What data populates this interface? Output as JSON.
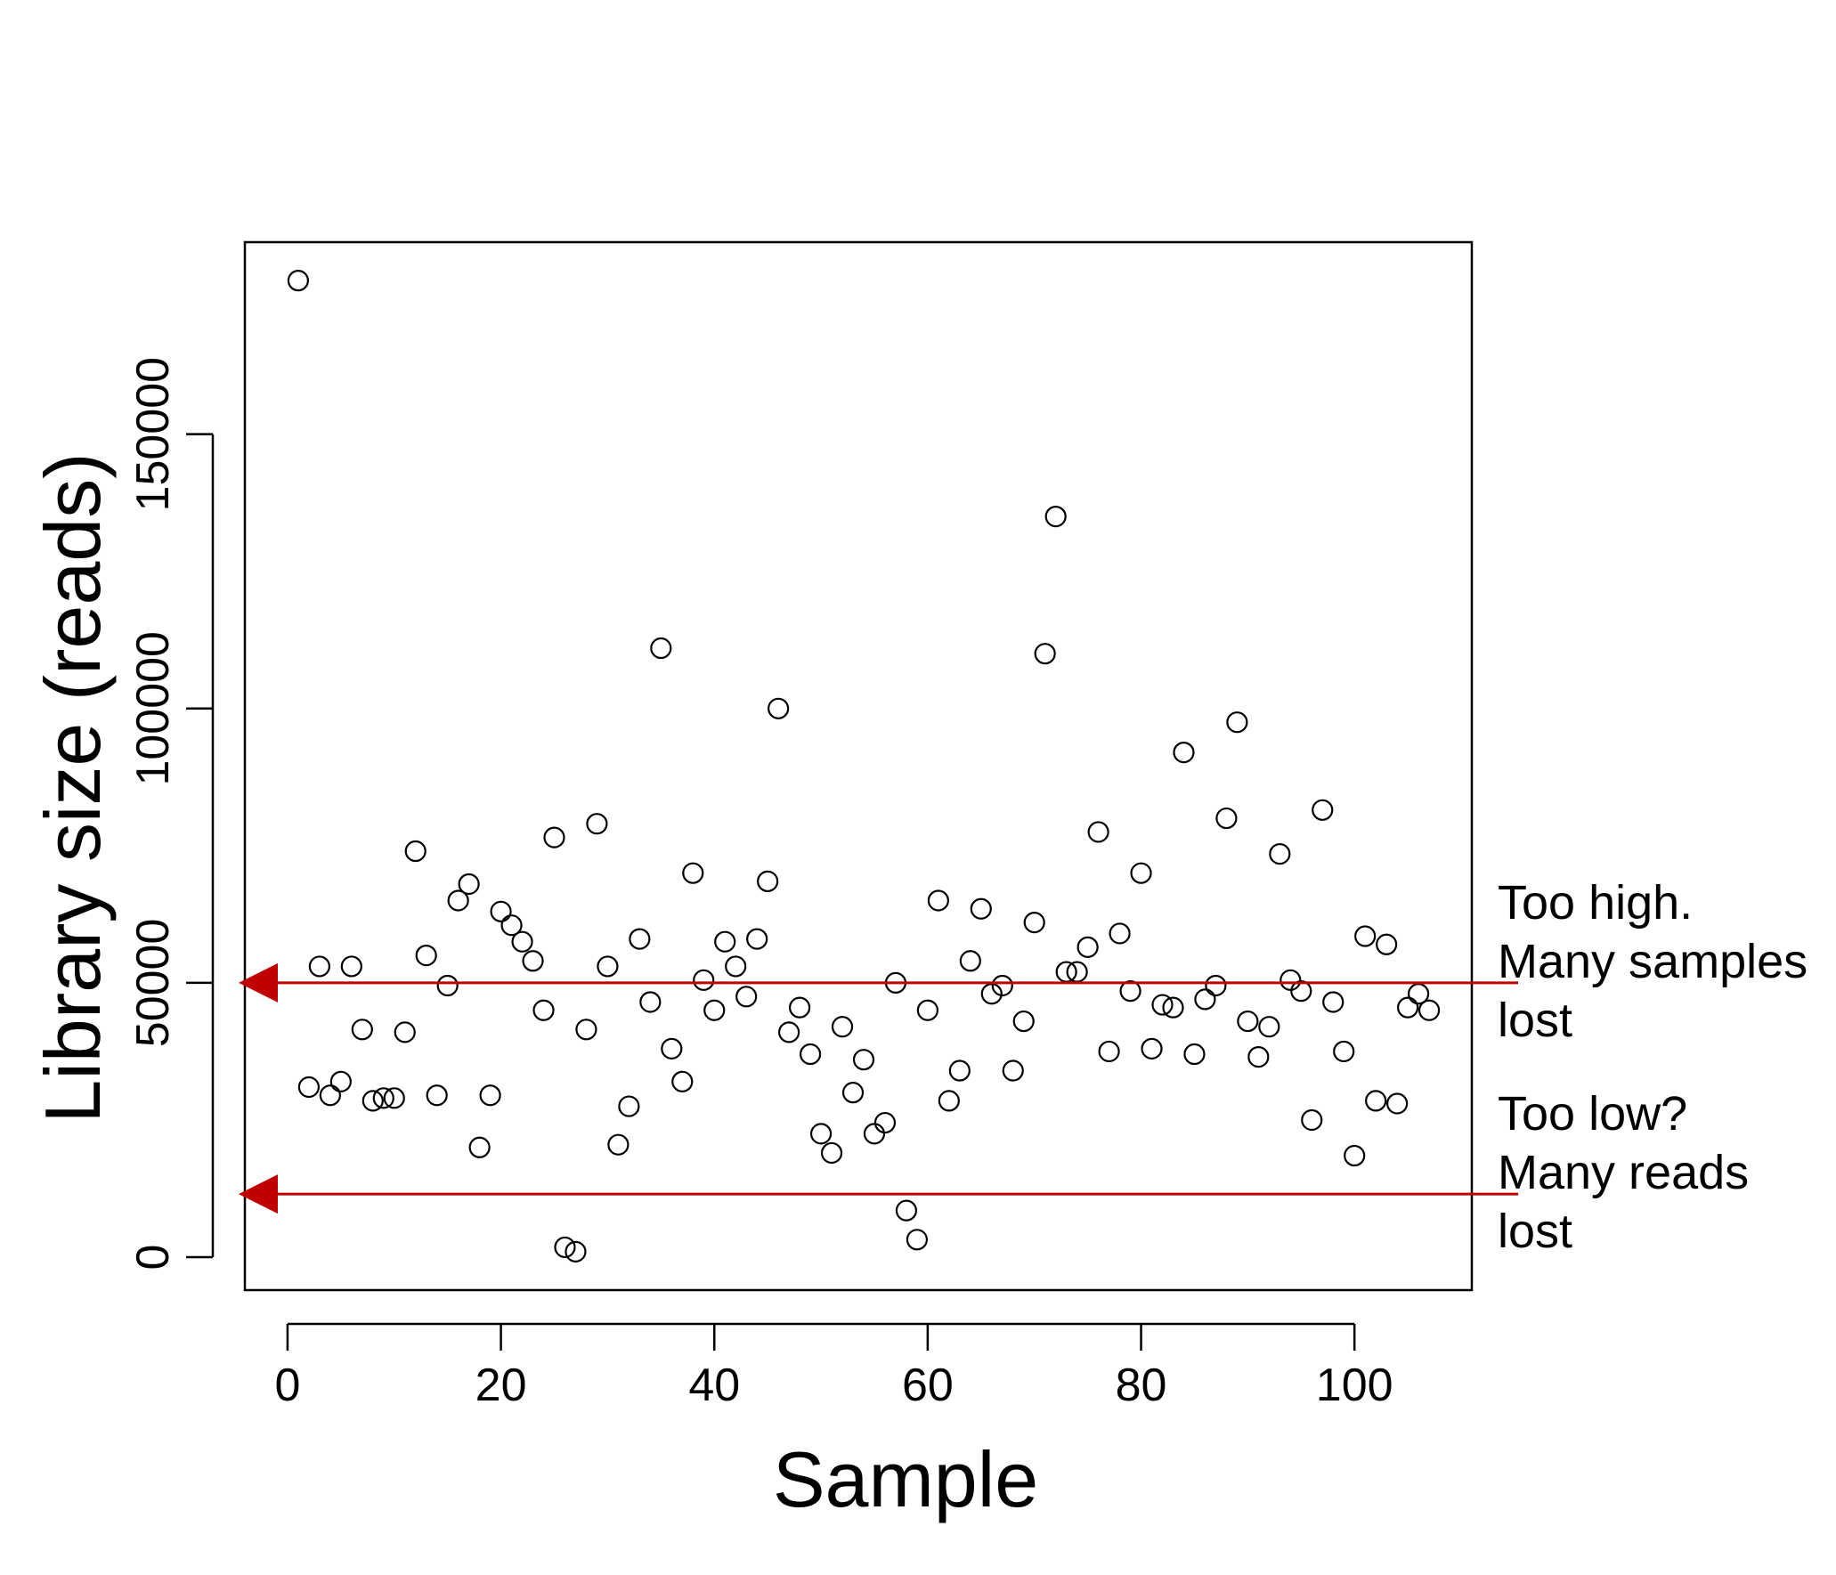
{
  "chart_data": {
    "type": "scatter",
    "xlabel": "Sample",
    "ylabel": "Library size (reads)",
    "xlim": [
      -4,
      111
    ],
    "ylim": [
      -6000,
      185000
    ],
    "x_ticks": [
      0,
      20,
      40,
      60,
      80,
      100
    ],
    "y_ticks": [
      0,
      50000,
      100000,
      150000
    ],
    "grid": false,
    "colors": {
      "points": "#000000",
      "threshold": "#c00000"
    },
    "series": [
      {
        "x": [
          1,
          2,
          3,
          4,
          5,
          6,
          7,
          8,
          9,
          10,
          11,
          12,
          13,
          14,
          15,
          16,
          17,
          18,
          19,
          20,
          21,
          22,
          23,
          24,
          25,
          26,
          27,
          28,
          29,
          30,
          31,
          32,
          33,
          34,
          35,
          36,
          37,
          38,
          39,
          40,
          41,
          42,
          43,
          44,
          45,
          46,
          47,
          48,
          49,
          50,
          51,
          52,
          53,
          54,
          55,
          56,
          57,
          58,
          59,
          60,
          61,
          62,
          63,
          64,
          65,
          66,
          67,
          68,
          69,
          70,
          71,
          72,
          73,
          74,
          75,
          76,
          77,
          78,
          79,
          80,
          81,
          82,
          83,
          84,
          85,
          86,
          87,
          88,
          89,
          90,
          91,
          92,
          93,
          94,
          95,
          96,
          97,
          98,
          99,
          100,
          101,
          102,
          103,
          104,
          105,
          106,
          107
        ],
        "y": [
          178000,
          31000,
          53000,
          29500,
          32000,
          53000,
          41500,
          28500,
          29000,
          29000,
          41000,
          74000,
          55000,
          29500,
          49500,
          65000,
          68000,
          20000,
          29500,
          63000,
          60500,
          57500,
          54000,
          45000,
          76500,
          1800,
          1000,
          41500,
          79000,
          53000,
          20500,
          27500,
          58000,
          46500,
          111000,
          38000,
          32000,
          70000,
          50500,
          45000,
          57500,
          53000,
          47500,
          58000,
          68500,
          100000,
          41000,
          45500,
          37000,
          22500,
          19000,
          42000,
          30000,
          36000,
          22500,
          24500,
          50000,
          8500,
          3200,
          45000,
          65000,
          28500,
          34000,
          54000,
          63500,
          48000,
          49500,
          34000,
          43000,
          61000,
          110000,
          135000,
          52000,
          52000,
          56500,
          77500,
          37500,
          59000,
          48500,
          70000,
          38000,
          46000,
          45500,
          92000,
          37000,
          47000,
          49500,
          80000,
          97500,
          43000,
          36500,
          42000,
          73500,
          50500,
          48500,
          25000,
          81500,
          46500,
          37500,
          18500,
          58500,
          28500,
          57000,
          28000,
          45500,
          48000,
          45000
        ]
      }
    ],
    "thresholds": [
      {
        "y": 50000,
        "label_lines": [
          "Too high.",
          "Many samples",
          "lost"
        ]
      },
      {
        "y": 11500,
        "label_lines": [
          "Too low?",
          "Many reads",
          "lost"
        ]
      }
    ]
  }
}
